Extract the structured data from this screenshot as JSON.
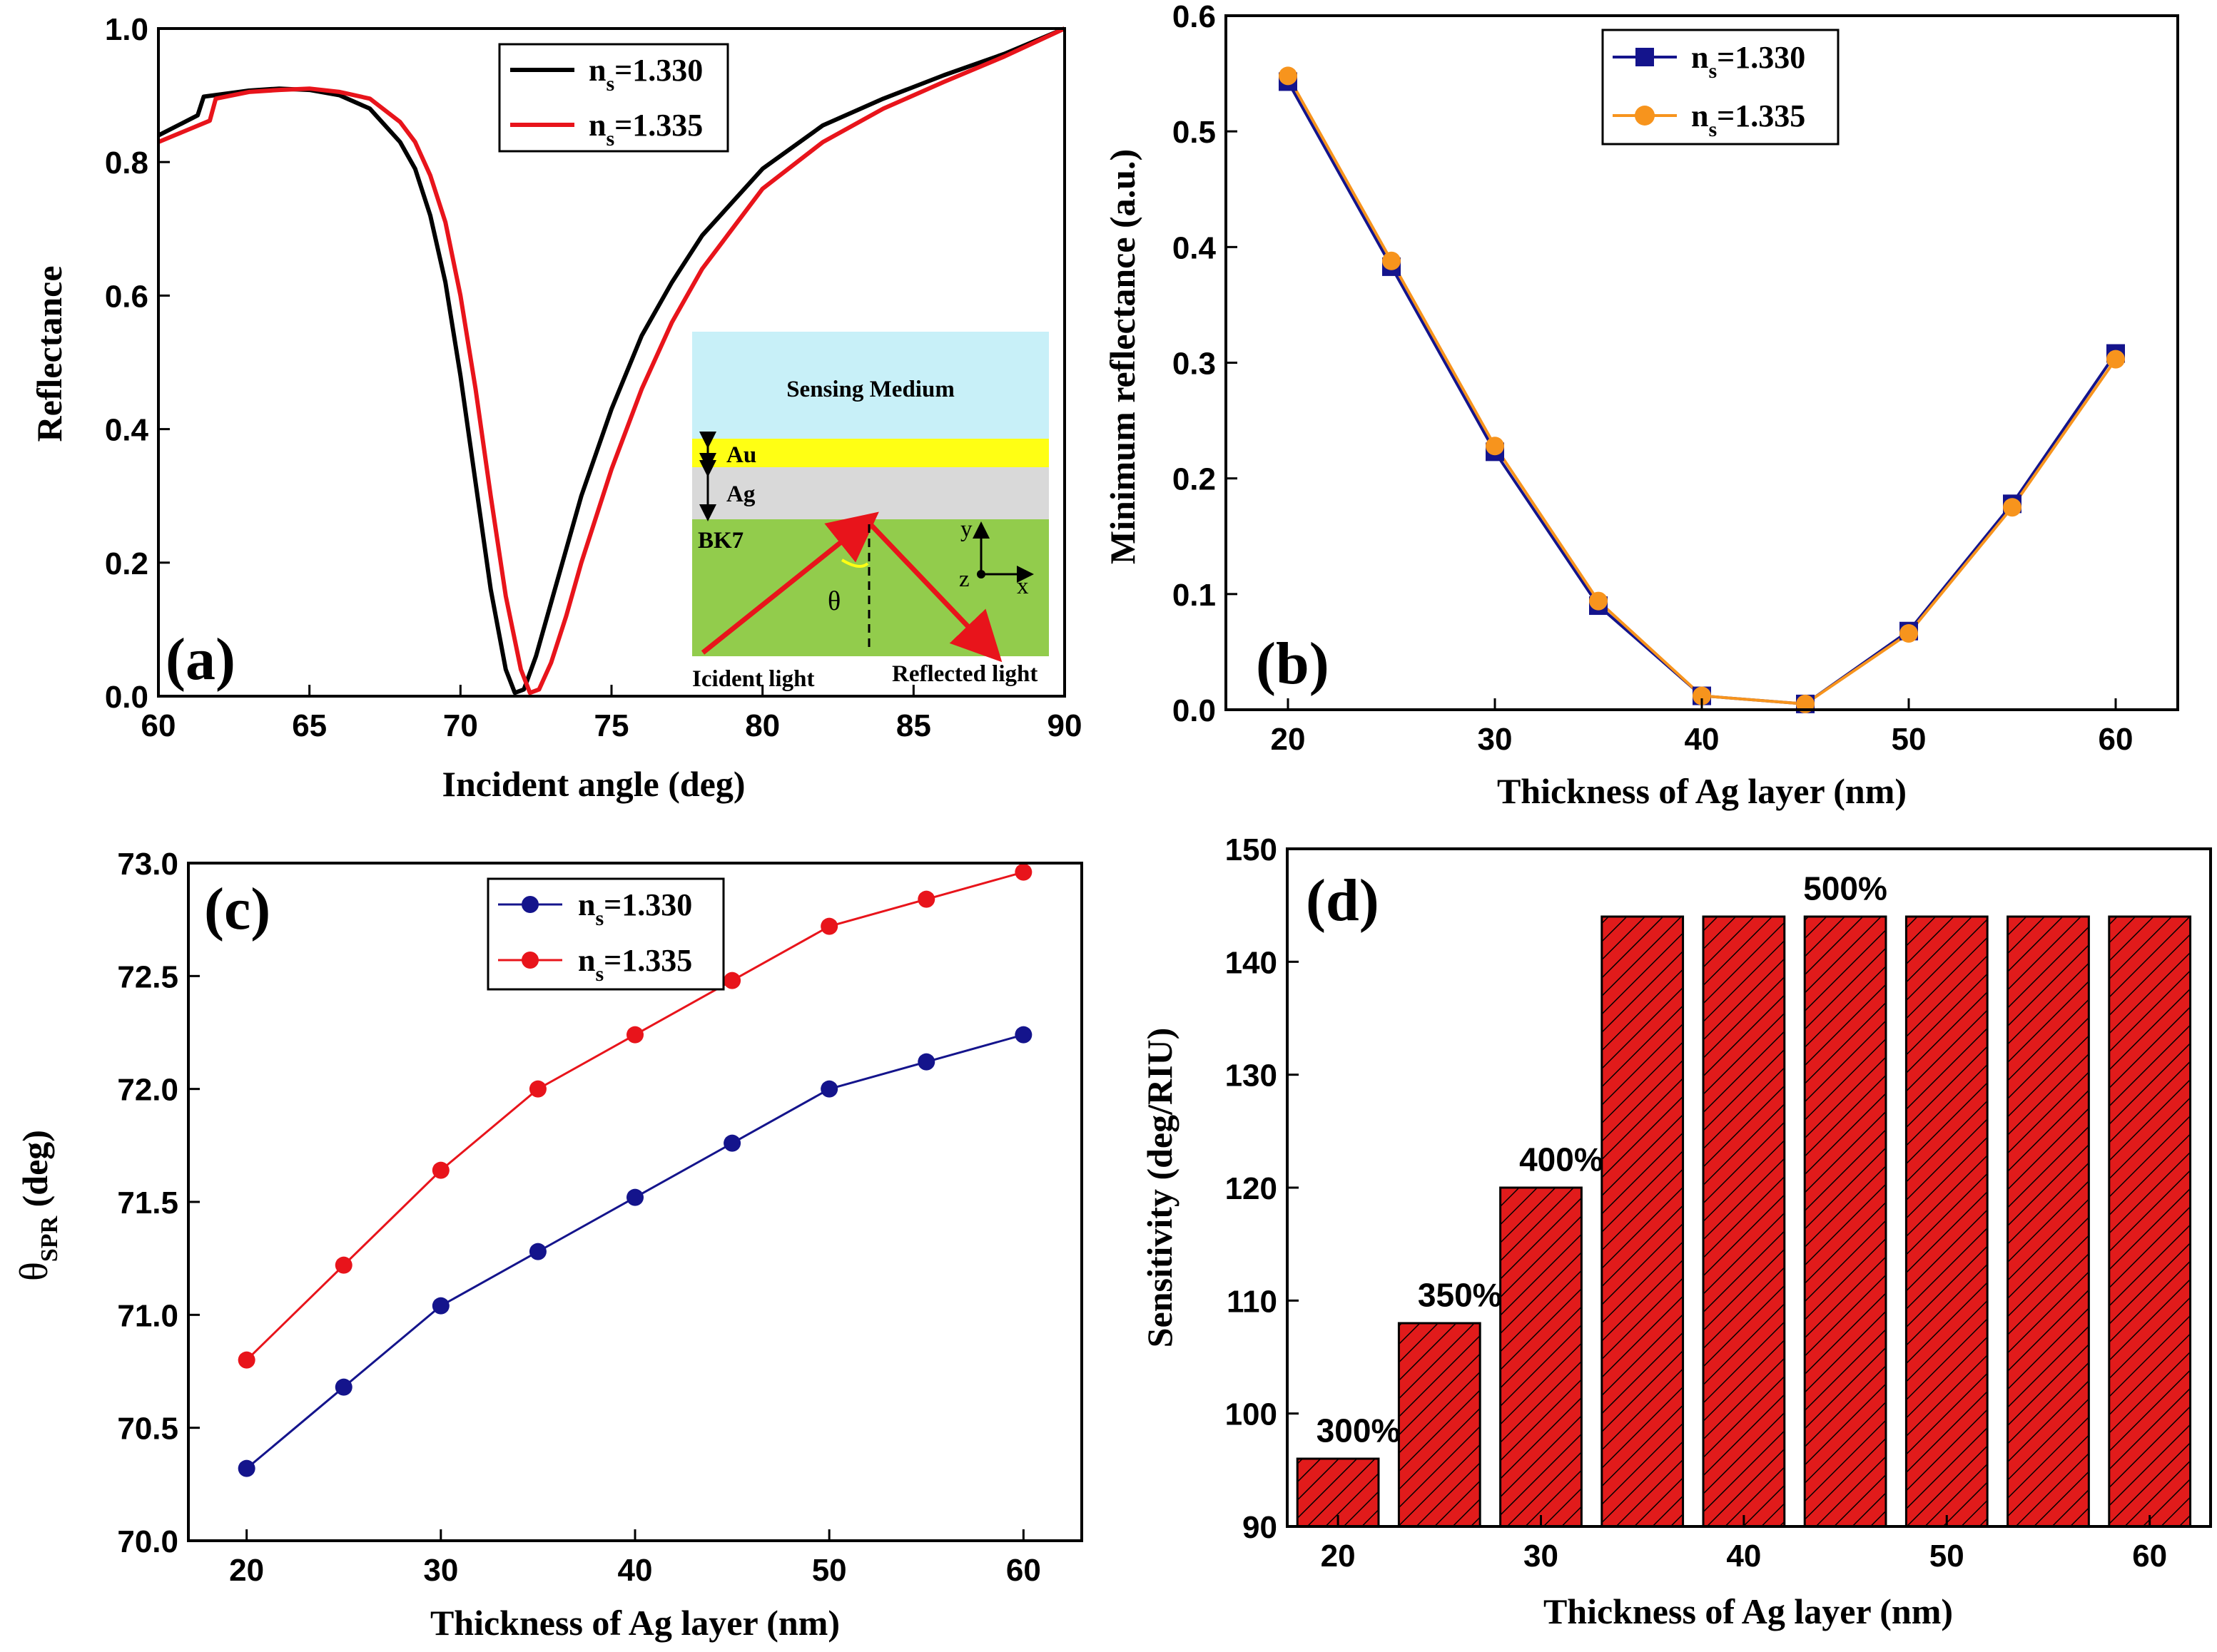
{
  "colors": {
    "black": "#000000",
    "red": "#e8141b",
    "navy": "#14148c",
    "orange": "#f7941d",
    "bar_fill": "#e11b1b",
    "sensing_medium": "#c8f0f8",
    "au_layer": "#ffff14",
    "ag_layer": "#d9d9d9",
    "bk7": "#92cc4c"
  },
  "chart_data": [
    {
      "panel": "(a)",
      "type": "line",
      "xlabel": "Incident angle (deg)",
      "ylabel": "Reflectance",
      "xlim": [
        60,
        90
      ],
      "ylim": [
        0.0,
        1.0
      ],
      "xticks": [
        "60",
        "65",
        "70",
        "75",
        "80",
        "85",
        "90"
      ],
      "yticks": [
        "0.0",
        "0.2",
        "0.4",
        "0.6",
        "0.8",
        "1.0"
      ],
      "legend_position": "top-right",
      "series": [
        {
          "name": "n=1.330",
          "legend_main": "n",
          "legend_sub": "s",
          "legend_tail": "=1.330",
          "color": "#000000",
          "x": [
            60,
            61.3,
            61.5,
            63,
            64,
            65,
            66,
            67,
            68,
            68.5,
            69,
            69.5,
            70,
            70.5,
            71,
            71.5,
            71.8,
            72.1,
            72.5,
            73,
            74,
            75,
            76,
            77,
            78,
            80,
            82,
            84,
            86,
            88,
            90
          ],
          "y": [
            0.84,
            0.87,
            0.898,
            0.907,
            0.91,
            0.908,
            0.9,
            0.88,
            0.83,
            0.79,
            0.72,
            0.62,
            0.48,
            0.32,
            0.16,
            0.04,
            0.005,
            0.01,
            0.06,
            0.14,
            0.3,
            0.43,
            0.54,
            0.62,
            0.69,
            0.79,
            0.855,
            0.895,
            0.93,
            0.962,
            1.0
          ]
        },
        {
          "name": "n=1.335",
          "legend_main": "n",
          "legend_sub": "s",
          "legend_tail": "=1.335",
          "color": "#e8141b",
          "x": [
            60,
            61.7,
            61.9,
            63,
            64,
            65,
            66,
            67,
            68,
            68.5,
            69,
            69.5,
            70,
            70.5,
            71,
            71.5,
            72,
            72.3,
            72.6,
            73,
            73.5,
            74,
            75,
            76,
            77,
            78,
            80,
            82,
            84,
            86,
            88,
            90
          ],
          "y": [
            0.83,
            0.862,
            0.895,
            0.905,
            0.908,
            0.91,
            0.905,
            0.895,
            0.86,
            0.83,
            0.78,
            0.71,
            0.6,
            0.46,
            0.3,
            0.15,
            0.04,
            0.005,
            0.01,
            0.05,
            0.12,
            0.2,
            0.34,
            0.46,
            0.56,
            0.64,
            0.76,
            0.83,
            0.88,
            0.92,
            0.958,
            1.0
          ]
        }
      ],
      "inset": {
        "sensing_medium": "Sensing Medium",
        "au": "Au",
        "ag": "Ag",
        "bk7": "BK7",
        "axis_y": "y",
        "axis_z": "z",
        "axis_x": "x",
        "theta": "θ",
        "incident": "Icident light",
        "reflected": "Reflected light"
      }
    },
    {
      "panel": "(b)",
      "type": "line",
      "xlabel": "Thickness of Ag layer (nm)",
      "ylabel": "Minimum reflectance (a.u.)",
      "xlim": [
        17,
        63
      ],
      "ylim": [
        0.0,
        0.6
      ],
      "xticks": [
        "20",
        "30",
        "40",
        "50",
        "60"
      ],
      "yticks": [
        "0.0",
        "0.1",
        "0.2",
        "0.3",
        "0.4",
        "0.5",
        "0.6"
      ],
      "legend_position": "top-center",
      "x": [
        20,
        25,
        30,
        35,
        40,
        45,
        50,
        55,
        60
      ],
      "series": [
        {
          "name": "n=1.330",
          "legend_main": "n",
          "legend_sub": "s",
          "legend_tail": "=1.330",
          "color": "#14148c",
          "marker": "square",
          "values": [
            0.543,
            0.383,
            0.223,
            0.09,
            0.012,
            0.005,
            0.068,
            0.178,
            0.308
          ]
        },
        {
          "name": "n=1.335",
          "legend_main": "n",
          "legend_sub": "s",
          "legend_tail": "=1.335",
          "color": "#f7941d",
          "marker": "circle",
          "values": [
            0.548,
            0.388,
            0.228,
            0.094,
            0.012,
            0.005,
            0.066,
            0.175,
            0.303
          ]
        }
      ]
    },
    {
      "panel": "(c)",
      "type": "line",
      "xlabel": "Thickness of Ag layer (nm)",
      "ylabel_main": "θ",
      "ylabel_sub": "SPR",
      "ylabel_tail": " (deg)",
      "xlim": [
        17,
        63
      ],
      "ylim": [
        70.0,
        73.0
      ],
      "xticks": [
        "20",
        "30",
        "40",
        "50",
        "60"
      ],
      "yticks": [
        "70.0",
        "70.5",
        "71.0",
        "71.5",
        "72.0",
        "72.5",
        "73.0"
      ],
      "legend_position": "top-center",
      "x": [
        20,
        25,
        30,
        35,
        40,
        45,
        50,
        55,
        60
      ],
      "series": [
        {
          "name": "n=1.330",
          "legend_main": "n",
          "legend_sub": "s",
          "legend_tail": "=1.330",
          "color": "#14148c",
          "values": [
            70.32,
            70.68,
            71.04,
            71.28,
            71.52,
            71.76,
            72.0,
            72.12,
            72.24
          ]
        },
        {
          "name": "n=1.335",
          "legend_main": "n",
          "legend_sub": "s",
          "legend_tail": "=1.335",
          "color": "#e8141b",
          "values": [
            70.8,
            71.22,
            71.64,
            72.0,
            72.24,
            72.48,
            72.72,
            72.84,
            72.96
          ]
        }
      ]
    },
    {
      "panel": "(d)",
      "type": "bar",
      "xlabel": "Thickness of Ag layer (nm)",
      "ylabel": "Sensitivity (deg/RIU)",
      "xlim": [
        17.5,
        63
      ],
      "ylim": [
        90,
        150
      ],
      "xticks": [
        "20",
        "30",
        "40",
        "50",
        "60"
      ],
      "yticks": [
        "90",
        "100",
        "110",
        "120",
        "130",
        "140",
        "150"
      ],
      "x": [
        20,
        25,
        30,
        35,
        40,
        45,
        50,
        55,
        60
      ],
      "values": [
        96,
        108,
        120,
        144,
        144,
        144,
        144,
        144,
        144
      ],
      "annotations": [
        {
          "text": "300%",
          "x": 21,
          "y": 97.5
        },
        {
          "text": "350%",
          "x": 26,
          "y": 109.5
        },
        {
          "text": "400%",
          "x": 31,
          "y": 121.5
        },
        {
          "text": "500%",
          "x": 45,
          "y": 145.5
        }
      ]
    }
  ]
}
